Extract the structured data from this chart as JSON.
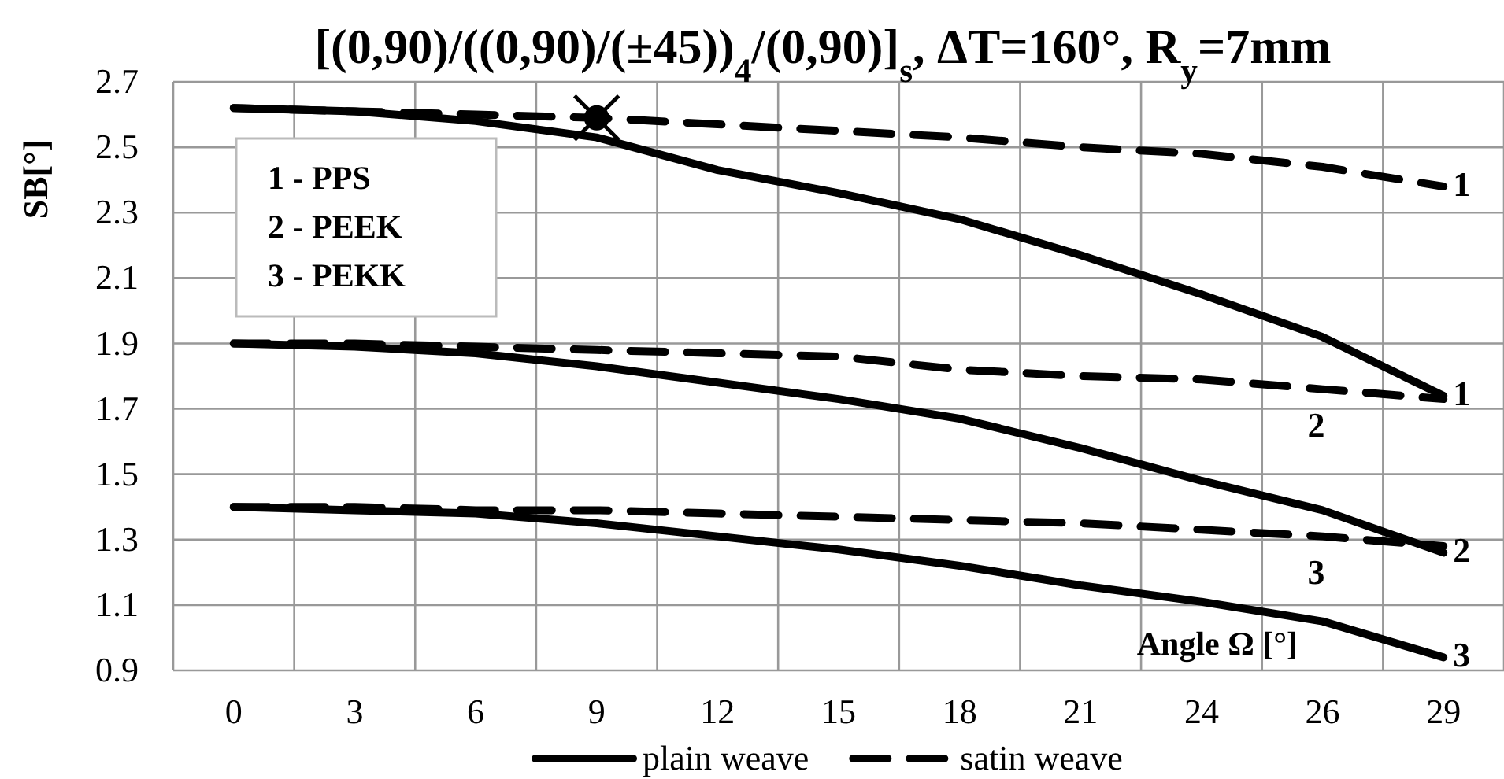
{
  "chart_data": {
    "type": "line",
    "title": "[(0,90)/((0,90)/(±45))$_{4}$/(0,90)]$_{s}$, ΔT=160°, R$_{y}$=7mm",
    "xlabel": "Angle Ω [°]",
    "ylabel": "SB[°]",
    "categories": [
      "0",
      "3",
      "6",
      "9",
      "12",
      "15",
      "18",
      "21",
      "24",
      "26",
      "29"
    ],
    "series": [
      {
        "name": "plain weave",
        "color": "#000000",
        "line_style": "solid",
        "values": [
          2.62,
          2.61,
          2.58,
          2.53,
          2.43,
          2.36,
          2.28,
          2.17,
          2.05,
          1.92,
          1.74
        ]
      },
      {
        "name": "satin weave",
        "color": "#000000",
        "line_style": "dashed",
        "values": [
          2.62,
          2.61,
          2.6,
          2.59,
          2.57,
          2.55,
          2.53,
          2.5,
          2.48,
          2.44,
          2.38
        ]
      },
      {
        "color": "#000000",
        "line_style": "solid",
        "values": [
          1.9,
          1.89,
          1.87,
          1.83,
          1.78,
          1.73,
          1.67,
          1.58,
          1.48,
          1.39,
          1.26
        ]
      },
      {
        "color": "#000000",
        "line_style": "dashed",
        "values": [
          1.9,
          1.9,
          1.89,
          1.88,
          1.87,
          1.86,
          1.82,
          1.8,
          1.79,
          1.76,
          1.73
        ]
      },
      {
        "color": "#000000",
        "line_style": "solid",
        "values": [
          1.4,
          1.39,
          1.38,
          1.35,
          1.31,
          1.27,
          1.22,
          1.16,
          1.11,
          1.05,
          0.94
        ]
      },
      {
        "color": "#000000",
        "line_style": "dashed",
        "values": [
          1.4,
          1.4,
          1.39,
          1.39,
          1.38,
          1.37,
          1.36,
          1.35,
          1.33,
          1.31,
          1.28
        ]
      }
    ],
    "ylim": [
      0.9,
      2.7
    ],
    "yticks": [
      0.9,
      1.1,
      1.3,
      1.5,
      1.7,
      1.9,
      2.1,
      2.3,
      2.5,
      2.7
    ],
    "grid": true,
    "legend": "bottom",
    "marker": "none",
    "annotations": [
      "1 - PPS",
      "2 - PEEK",
      "3 - PEKK",
      {
        "text": "1",
        "x": "29",
        "y": 2.38
      },
      {
        "text": "1",
        "x": "29",
        "y": 1.74
      },
      {
        "text": "2",
        "x": "26",
        "y": 1.76
      },
      {
        "text": "2",
        "x": "29",
        "y": 1.26
      },
      {
        "text": "3",
        "x": "26",
        "y": 1.31
      },
      {
        "text": "3",
        "x": "29",
        "y": 0.94
      }
    ]
  }
}
